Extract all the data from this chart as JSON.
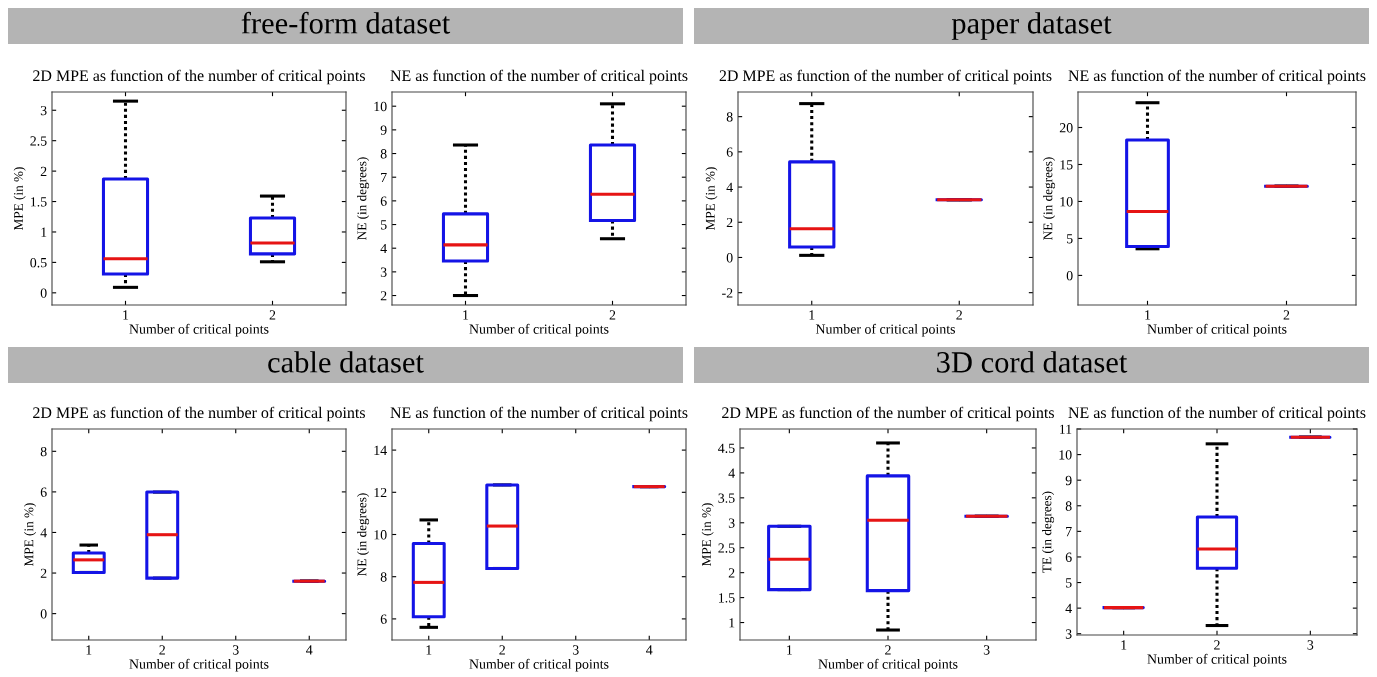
{
  "chart_data": [
    {
      "type": "box",
      "annotations": [
        "free-form dataset"
      ],
      "title": "2D MPE as function of the number of critical points",
      "xlabel": "Number of critical points",
      "ylabel": "MPE (in %)",
      "categories": [
        "1",
        "2"
      ],
      "ylim": [
        -0.2,
        3.3
      ],
      "yticks": [
        0,
        0.5,
        1,
        1.5,
        2,
        2.5,
        3
      ],
      "boxes": [
        {
          "low": 0.09,
          "q1": 0.31,
          "median": 0.56,
          "q3": 1.87,
          "high": 3.15
        },
        {
          "low": 0.51,
          "q1": 0.64,
          "median": 0.82,
          "q3": 1.23,
          "high": 1.59
        }
      ]
    },
    {
      "type": "box",
      "title": "NE as function of the number of critical points",
      "xlabel": "Number of critical points",
      "ylabel": "NE (in degrees)",
      "categories": [
        "1",
        "2"
      ],
      "ylim": [
        1.6,
        10.6
      ],
      "yticks": [
        2,
        3,
        4,
        5,
        6,
        7,
        8,
        9,
        10
      ],
      "boxes": [
        {
          "low": 2.0,
          "q1": 3.46,
          "median": 4.14,
          "q3": 5.45,
          "high": 8.36
        },
        {
          "low": 4.4,
          "q1": 5.17,
          "median": 6.28,
          "q3": 8.36,
          "high": 10.1
        }
      ]
    },
    {
      "type": "box",
      "annotations": [
        "paper dataset"
      ],
      "title": "2D MPE as function of the number of critical points",
      "xlabel": "Number of critical points",
      "ylabel": "MPE (in %)",
      "categories": [
        "1",
        "2"
      ],
      "ylim": [
        -2.7,
        9.4
      ],
      "yticks": [
        -2,
        0,
        2,
        4,
        6,
        8
      ],
      "boxes": [
        {
          "low": 0.12,
          "q1": 0.6,
          "median": 1.63,
          "q3": 5.43,
          "high": 8.74
        },
        {
          "low": 3.28,
          "q1": 3.28,
          "median": 3.28,
          "q3": 3.28,
          "high": 3.28
        }
      ]
    },
    {
      "type": "box",
      "title": "NE as function of the number of critical points",
      "xlabel": "Number of critical points",
      "ylabel": "NE (in degrees)",
      "categories": [
        "1",
        "2"
      ],
      "ylim": [
        -4,
        24.8
      ],
      "yticks": [
        0,
        5,
        10,
        15,
        20
      ],
      "boxes": [
        {
          "low": 3.6,
          "q1": 3.9,
          "median": 8.65,
          "q3": 18.3,
          "high": 23.35
        },
        {
          "low": 12.06,
          "q1": 12.06,
          "median": 12.06,
          "q3": 12.06,
          "high": 12.06
        }
      ]
    },
    {
      "type": "box",
      "annotations": [
        "cable dataset"
      ],
      "title": "2D MPE as function of the number of critical points",
      "xlabel": "Number of critical points",
      "ylabel": "MPE (in %)",
      "categories": [
        "1",
        "2",
        "3",
        "4"
      ],
      "ylim": [
        -1.3,
        9.1
      ],
      "yticks": [
        0,
        2,
        4,
        6,
        8
      ],
      "boxes": [
        {
          "low": 2.03,
          "q1": 2.03,
          "median": 2.65,
          "q3": 2.99,
          "high": 3.38
        },
        {
          "low": 1.75,
          "q1": 1.75,
          "median": 3.89,
          "q3": 5.99,
          "high": 5.99
        },
        null,
        {
          "low": 1.6,
          "q1": 1.6,
          "median": 1.6,
          "q3": 1.6,
          "high": 1.6
        }
      ]
    },
    {
      "type": "box",
      "title": "NE as function of the number of critical points",
      "xlabel": "Number of critical points",
      "ylabel": "NE (in degrees)",
      "categories": [
        "1",
        "2",
        "3",
        "4"
      ],
      "ylim": [
        5,
        15
      ],
      "yticks": [
        6,
        8,
        10,
        12,
        14
      ],
      "boxes": [
        {
          "low": 5.6,
          "q1": 6.1,
          "median": 7.73,
          "q3": 9.57,
          "high": 10.69
        },
        {
          "low": 8.39,
          "q1": 8.39,
          "median": 10.4,
          "q3": 12.35,
          "high": 12.35
        },
        null,
        {
          "low": 12.27,
          "q1": 12.27,
          "median": 12.27,
          "q3": 12.27,
          "high": 12.27
        }
      ]
    },
    {
      "type": "box",
      "annotations": [
        "3D cord dataset"
      ],
      "title": "2D MPE as function of the number of critical points",
      "xlabel": "Number of critical points",
      "ylabel": "MPE (in %)",
      "categories": [
        "1",
        "2",
        "3"
      ],
      "ylim": [
        0.65,
        4.88
      ],
      "yticks": [
        1,
        1.5,
        2,
        2.5,
        3,
        3.5,
        4,
        4.5
      ],
      "boxes": [
        {
          "low": 1.66,
          "q1": 1.66,
          "median": 2.27,
          "q3": 2.93,
          "high": 2.93
        },
        {
          "low": 0.85,
          "q1": 1.64,
          "median": 3.05,
          "q3": 3.94,
          "high": 4.6
        },
        {
          "low": 3.13,
          "q1": 3.13,
          "median": 3.13,
          "q3": 3.13,
          "high": 3.13
        }
      ]
    },
    {
      "type": "box",
      "title": "NE as function of the number of critical points",
      "xlabel": "Number of critical points",
      "ylabel": "TE (in degrees)",
      "categories": [
        "1",
        "2",
        "3"
      ],
      "ylim": [
        2.95,
        11
      ],
      "yticks": [
        3,
        4,
        5,
        6,
        7,
        8,
        9,
        10,
        11
      ],
      "boxes": [
        {
          "low": 4.02,
          "q1": 4.02,
          "median": 4.02,
          "q3": 4.02,
          "high": 4.02
        },
        {
          "low": 3.32,
          "q1": 5.56,
          "median": 6.31,
          "q3": 7.56,
          "high": 10.42
        },
        {
          "low": 10.68,
          "q1": 10.68,
          "median": 10.68,
          "q3": 10.68,
          "high": 10.68
        }
      ]
    }
  ]
}
